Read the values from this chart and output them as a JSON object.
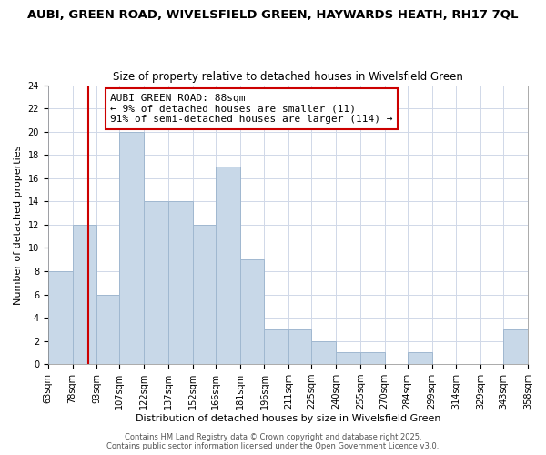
{
  "title_line1": "AUBI, GREEN ROAD, WIVELSFIELD GREEN, HAYWARDS HEATH, RH17 7QL",
  "title_line2": "Size of property relative to detached houses in Wivelsfield Green",
  "xlabel": "Distribution of detached houses by size in Wivelsfield Green",
  "ylabel": "Number of detached properties",
  "bin_edges": [
    63,
    78,
    93,
    107,
    122,
    137,
    152,
    166,
    181,
    196,
    211,
    225,
    240,
    255,
    270,
    284,
    299,
    314,
    329,
    343,
    358
  ],
  "bar_heights": [
    8,
    12,
    6,
    20,
    14,
    14,
    12,
    17,
    9,
    3,
    3,
    2,
    1,
    1,
    0,
    1,
    0,
    0,
    0,
    3
  ],
  "bar_color": "#c8d8e8",
  "bar_edge_color": "#a0b8d0",
  "grid_color": "#d0d8e8",
  "vline_x": 88,
  "vline_color": "#cc0000",
  "annotation_title": "AUBI GREEN ROAD: 88sqm",
  "annotation_line1": "← 9% of detached houses are smaller (11)",
  "annotation_line2": "91% of semi-detached houses are larger (114) →",
  "annotation_box_color": "#ffffff",
  "annotation_box_edge": "#cc0000",
  "ylim": [
    0,
    24
  ],
  "yticks": [
    0,
    2,
    4,
    6,
    8,
    10,
    12,
    14,
    16,
    18,
    20,
    22,
    24
  ],
  "footer_line1": "Contains HM Land Registry data © Crown copyright and database right 2025.",
  "footer_line2": "Contains public sector information licensed under the Open Government Licence v3.0.",
  "title_fontsize": 9.5,
  "subtitle_fontsize": 8.5,
  "axis_label_fontsize": 8,
  "tick_fontsize": 7,
  "annotation_fontsize": 8,
  "footer_fontsize": 6
}
